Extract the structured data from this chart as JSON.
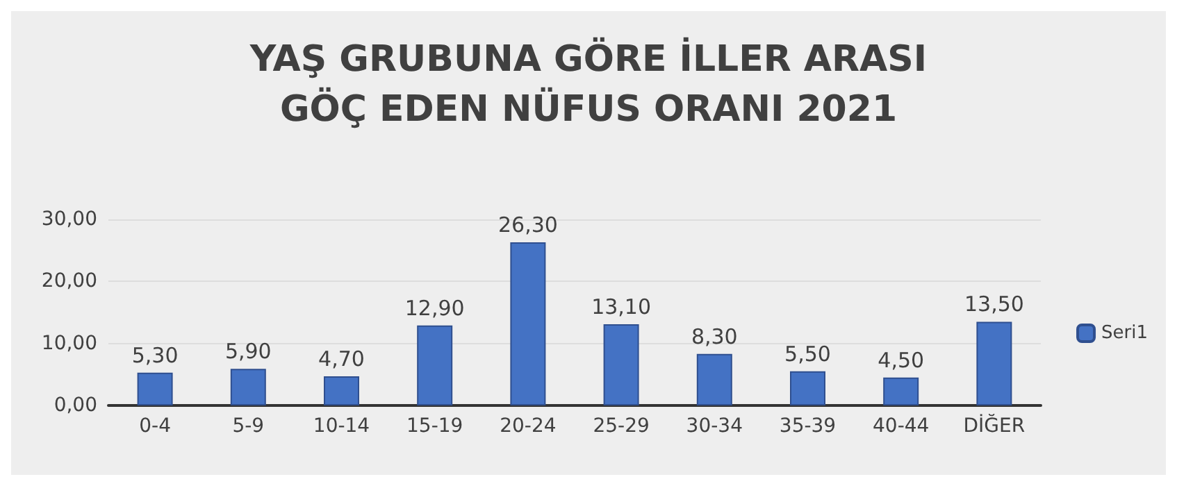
{
  "chart_data": {
    "type": "bar",
    "title": "YAŞ GRUBUNA GÖRE İLLER ARASI\nGÖÇ EDEN NÜFUS ORANI 2021",
    "categories": [
      "0-4",
      "5-9",
      "10-14",
      "15-19",
      "20-24",
      "25-29",
      "30-34",
      "35-39",
      "40-44",
      "DİĞER"
    ],
    "series": [
      {
        "name": "Seri1",
        "color": "#4472c4",
        "values": [
          5.3,
          5.9,
          4.7,
          12.9,
          26.3,
          13.1,
          8.3,
          5.5,
          4.5,
          13.5
        ],
        "value_labels": [
          "5,30",
          "5,90",
          "4,70",
          "12,90",
          "26,30",
          "13,10",
          "8,30",
          "5,50",
          "4,50",
          "13,50"
        ]
      }
    ],
    "ylim": [
      0,
      30
    ],
    "yticks": [
      {
        "value": 0,
        "label": "0,00"
      },
      {
        "value": 10,
        "label": "10,00"
      },
      {
        "value": 20,
        "label": "20,00"
      },
      {
        "value": 30,
        "label": "30,00"
      }
    ],
    "grid": "y",
    "legend": "right"
  }
}
